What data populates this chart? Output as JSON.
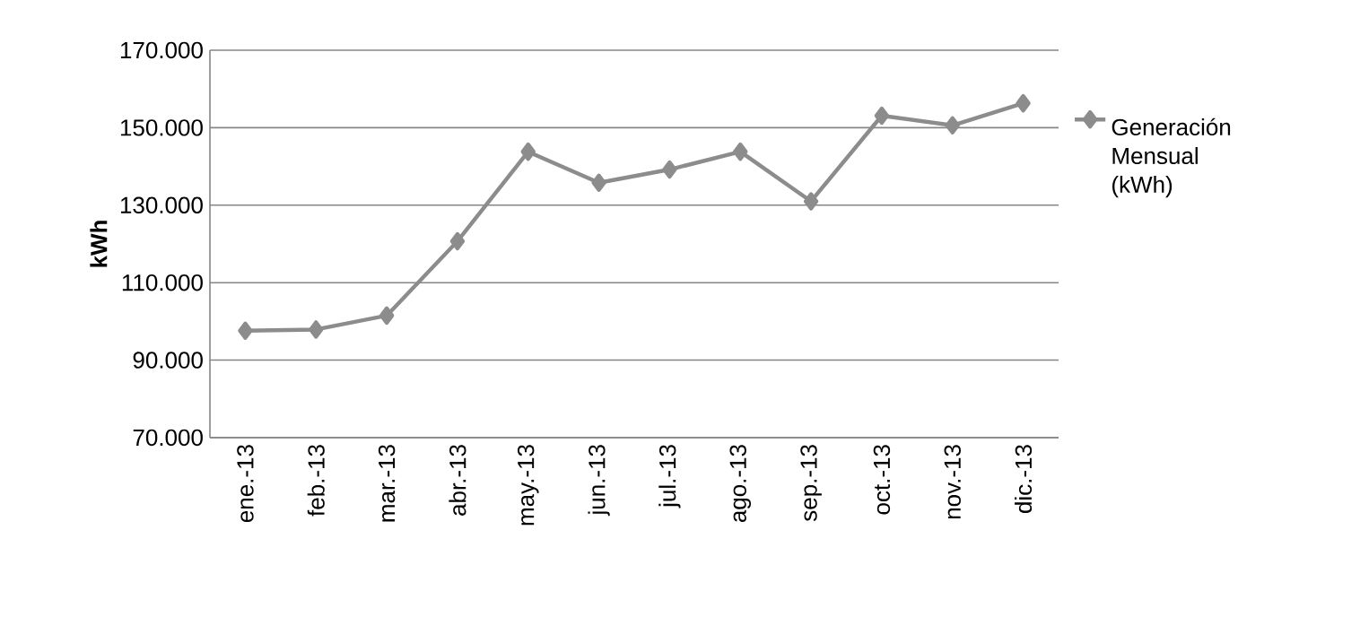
{
  "chart_data": {
    "type": "line",
    "ylabel": "kWh",
    "categories": [
      "ene.-13",
      "feb.-13",
      "mar.-13",
      "abr.-13",
      "may.-13",
      "jun.-13",
      "jul.-13",
      "ago.-13",
      "sep.-13",
      "oct.-13",
      "nov.-13",
      "dic.-13"
    ],
    "series": [
      {
        "name": "Generación Mensual (kWh)",
        "color": "#8c8c8c",
        "values": [
          97600,
          97900,
          101500,
          120700,
          143800,
          135800,
          139200,
          143800,
          131000,
          153100,
          150600,
          156300
        ]
      }
    ],
    "ylim": [
      70000,
      170000
    ],
    "yticks": [
      {
        "value": 70000,
        "label": "70.000"
      },
      {
        "value": 90000,
        "label": "90.000"
      },
      {
        "value": 110000,
        "label": "110.000"
      },
      {
        "value": 130000,
        "label": "130.000"
      },
      {
        "value": 150000,
        "label": "150.000"
      },
      {
        "value": 170000,
        "label": "170.000"
      }
    ],
    "grid": "y",
    "legend": "right",
    "marker": "diamond",
    "line_style": "solid"
  }
}
